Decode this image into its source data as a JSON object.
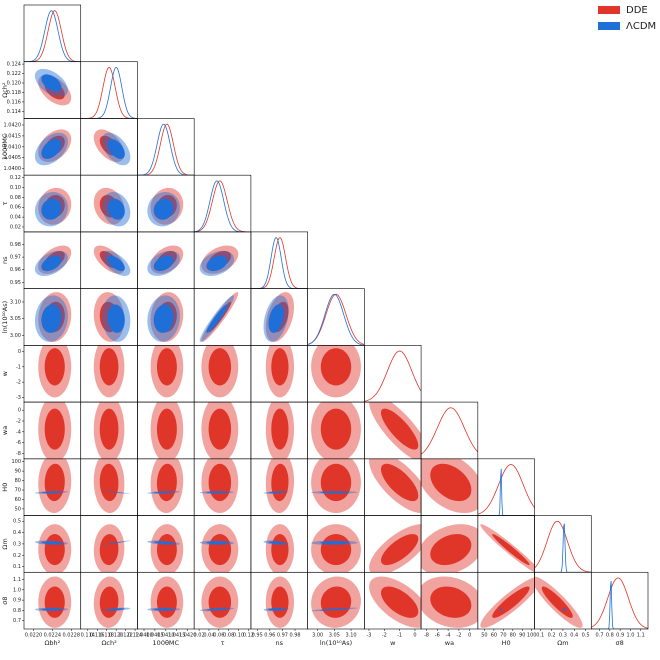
{
  "chart_data": {
    "type": "corner",
    "legend": "upper right",
    "parameters": [
      {
        "label": "Ωbh²",
        "lim": [
          0.0218,
          0.023
        ],
        "ticks": [
          {
            "value": 0.022,
            "label": "0.0220"
          },
          0.0224,
          0.0228
        ]
      },
      {
        "label": "Ωch²",
        "lim": [
          0.1125,
          0.1245
        ],
        "ticks": [
          0.114,
          0.116,
          0.118,
          {
            "value": 0.12,
            "label": "0.120"
          },
          0.122,
          0.124
        ]
      },
      {
        "label": "100θMC",
        "lim": [
          1.0397,
          1.0423
        ],
        "ticks": [
          {
            "value": 1.04,
            "label": "1.0400"
          },
          1.0405,
          {
            "value": 1.041,
            "label": "1.0410"
          },
          1.0415,
          {
            "value": 1.042,
            "label": "1.0420"
          }
        ]
      },
      {
        "label": "τ",
        "lim": [
          0.01,
          0.125
        ],
        "ticks": [
          0.02,
          0.04,
          0.06,
          0.08,
          {
            "value": 0.1,
            "label": "0.10"
          },
          0.12
        ]
      },
      {
        "label": "ns",
        "lim": [
          0.945,
          0.99
        ],
        "ticks": [
          0.95,
          0.96,
          0.97,
          0.98
        ]
      },
      {
        "label": "ln(10¹⁰As)",
        "lim": [
          2.97,
          3.14
        ],
        "ticks": [
          {
            "value": 3,
            "label": "3.00"
          },
          3.05,
          {
            "value": 3.1,
            "label": "3.10"
          }
        ]
      },
      {
        "label": "w",
        "lim": [
          -3.3,
          0.4
        ],
        "ticks": [
          -3,
          -2,
          -1,
          0
        ]
      },
      {
        "label": "wa",
        "lim": [
          -9,
          1.5
        ],
        "ticks": [
          -8,
          -6,
          -4,
          -2,
          0
        ]
      },
      {
        "label": "H0",
        "lim": [
          43,
          103
        ],
        "ticks": [
          50,
          60,
          70,
          80,
          90,
          100
        ]
      },
      {
        "label": "Ωm",
        "lim": [
          0.05,
          0.55
        ],
        "ticks": [
          0.1,
          0.2,
          0.3,
          0.4,
          0.5
        ]
      },
      {
        "label": "σ8",
        "lim": [
          0.62,
          1.17
        ],
        "ticks": [
          0.7,
          0.8,
          0.9,
          {
            "value": 1,
            "label": "1.0"
          },
          1.1
        ]
      }
    ],
    "series": [
      {
        "name": "DDE",
        "color": "#e0362a",
        "mean": [
          0.02245,
          0.1185,
          1.04105,
          0.062,
          0.968,
          3.055,
          -1.0,
          -3.5,
          78,
          0.25,
          0.88
        ],
        "sigma": [
          0.00014,
          0.0013,
          0.0003,
          0.015,
          0.0045,
          0.03,
          0.8,
          2.5,
          13,
          0.09,
          0.1
        ],
        "correlation": [
          -0.5,
          0.4,
          -0.5,
          0.1,
          -0.2,
          0.1,
          0.5,
          -0.6,
          0.4,
          0.4,
          0.1,
          -0.1,
          0.1,
          0.95,
          0.4,
          0,
          0,
          0,
          0,
          0,
          0,
          0,
          0,
          0,
          0,
          0,
          0,
          -0.8,
          0.05,
          -0.05,
          0.05,
          0,
          0.05,
          0,
          -0.7,
          -0.4,
          0,
          0.05,
          0,
          0,
          0,
          0,
          0.7,
          0.3,
          -0.97,
          0,
          0.05,
          0,
          0,
          0,
          0.05,
          -0.6,
          -0.2,
          0.9,
          -0.9
        ]
      },
      {
        "name": "ΛCDM",
        "color": "#1f6fd8",
        "mean": [
          0.02238,
          0.12,
          1.0409,
          0.056,
          0.965,
          3.05,
          null,
          null,
          67.5,
          0.31,
          0.81
        ],
        "sigma": [
          0.00014,
          0.0012,
          0.0003,
          0.014,
          0.004,
          0.028,
          null,
          null,
          0.6,
          0.008,
          0.007
        ],
        "correlation": [
          -0.5,
          0.45,
          -0.5,
          0.1,
          -0.2,
          0.1,
          0.45,
          -0.6,
          0.4,
          0.35,
          0.1,
          -0.1,
          0.1,
          0.95,
          0.35,
          null,
          null,
          null,
          null,
          null,
          null,
          null,
          null,
          null,
          null,
          null,
          null,
          null,
          0.4,
          -0.95,
          0.5,
          0.15,
          0.5,
          0.05,
          null,
          null,
          -0.3,
          0.97,
          -0.5,
          -0.1,
          -0.45,
          0.05,
          null,
          null,
          -0.98,
          0.05,
          0.6,
          0.05,
          0.6,
          0.2,
          0.8,
          null,
          null,
          -0.4,
          0.6
        ]
      }
    ]
  }
}
